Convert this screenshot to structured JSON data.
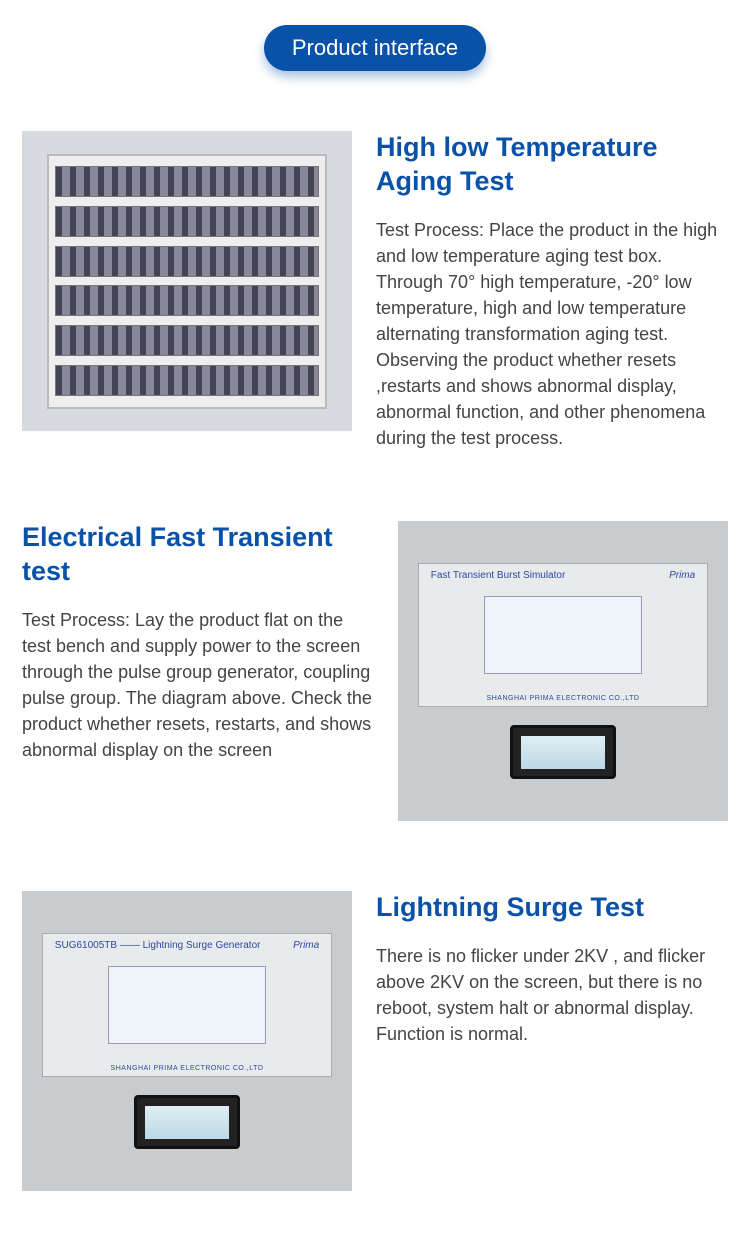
{
  "badge": "Product interface",
  "sections": [
    {
      "title": "High low Temperature Aging Test",
      "body": "Test Process: Place the product in the high and low temperature aging test box. Through 70° high temperature, -20° low temperature, high and low temperature alternating transformation aging test. Observing  the product  whether resets ,restarts  and shows abnormal display, abnormal function, and other phenomena during the test process.",
      "image_kind": "rack"
    },
    {
      "title": "Electrical Fast Transient test",
      "body": "Test Process: Lay the product flat on the test bench and supply power to the screen through the pulse group generator, coupling pulse group. The diagram above. Check the product whether resets, restarts, and shows  abnormal display on the screen",
      "image_kind": "instrument",
      "instr_label": "Fast Transient Burst Simulator",
      "instr_brand": "Prima",
      "instr_footer": "SHANGHAI PRIMA ELECTRONIC CO.,LTD"
    },
    {
      "title": "Lightning Surge Test",
      "body": "There is no flicker under 2KV , and flicker above 2KV on the screen, but there is no reboot, system halt or abnormal display. Function is normal.",
      "image_kind": "instrument",
      "instr_label": "SUG61005TB —— Lightning Surge Generator",
      "instr_brand": "Prima",
      "instr_footer": "SHANGHAI PRIMA ELECTRONIC CO.,LTD"
    }
  ],
  "colors": {
    "accent": "#0a52a9",
    "text": "#444444",
    "bg": "#ffffff"
  }
}
